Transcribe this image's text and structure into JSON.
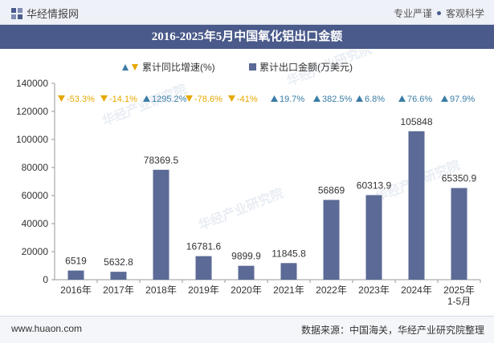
{
  "header": {
    "brand": "华经情报网",
    "tag1": "专业严谨",
    "tag2": "客观科学"
  },
  "title": "2016-2025年5月中国氧化铝出口金额",
  "footer": {
    "site": "www.huaon.com",
    "source": "数据来源：中国海关，华经产业研究院整理"
  },
  "watermark": "华经产业研究院",
  "chart_data": {
    "type": "bar",
    "title": "2016-2025年5月中国氧化铝出口金额",
    "categories": [
      "2016年",
      "2017年",
      "2018年",
      "2019年",
      "2020年",
      "2021年",
      "2022年",
      "2023年",
      "2024年",
      "2025年 1-5月"
    ],
    "series": [
      {
        "name": "累计出口金额(万美元)",
        "values": [
          6519,
          5632.8,
          78369.5,
          16781.6,
          9899.9,
          11845.8,
          56869,
          60313.9,
          105848,
          65350.9
        ],
        "labels": [
          "6519",
          "5632.8",
          "78369.5",
          "16781.6",
          "9899.9",
          "11845.8",
          "56869",
          "60313.9",
          "105848",
          "65350.9"
        ],
        "color": "#5b6a96"
      },
      {
        "name": "累计同比增速(%)",
        "values": [
          -53.3,
          -14.1,
          1295.2,
          -78.6,
          -41,
          19.7,
          382.5,
          6.8,
          76.6,
          97.9
        ],
        "labels": [
          "-53.3%",
          "-14.1%",
          "1295.2%",
          "-78.6%",
          "-41%",
          "19.7%",
          "382.5%",
          "6.8%",
          "76.6%",
          "97.9%"
        ],
        "up_color": "#3a7ca5",
        "down_color": "#e6a800"
      }
    ],
    "ylim": [
      0,
      140000
    ],
    "yticks": [
      0,
      20000,
      40000,
      60000,
      80000,
      100000,
      120000,
      140000
    ],
    "ytick_labels": [
      "0",
      "20000",
      "40000",
      "60000",
      "80000",
      "100000",
      "120000",
      "140000"
    ],
    "xlabel": "",
    "ylabel": "",
    "legend_position": "top-center"
  }
}
